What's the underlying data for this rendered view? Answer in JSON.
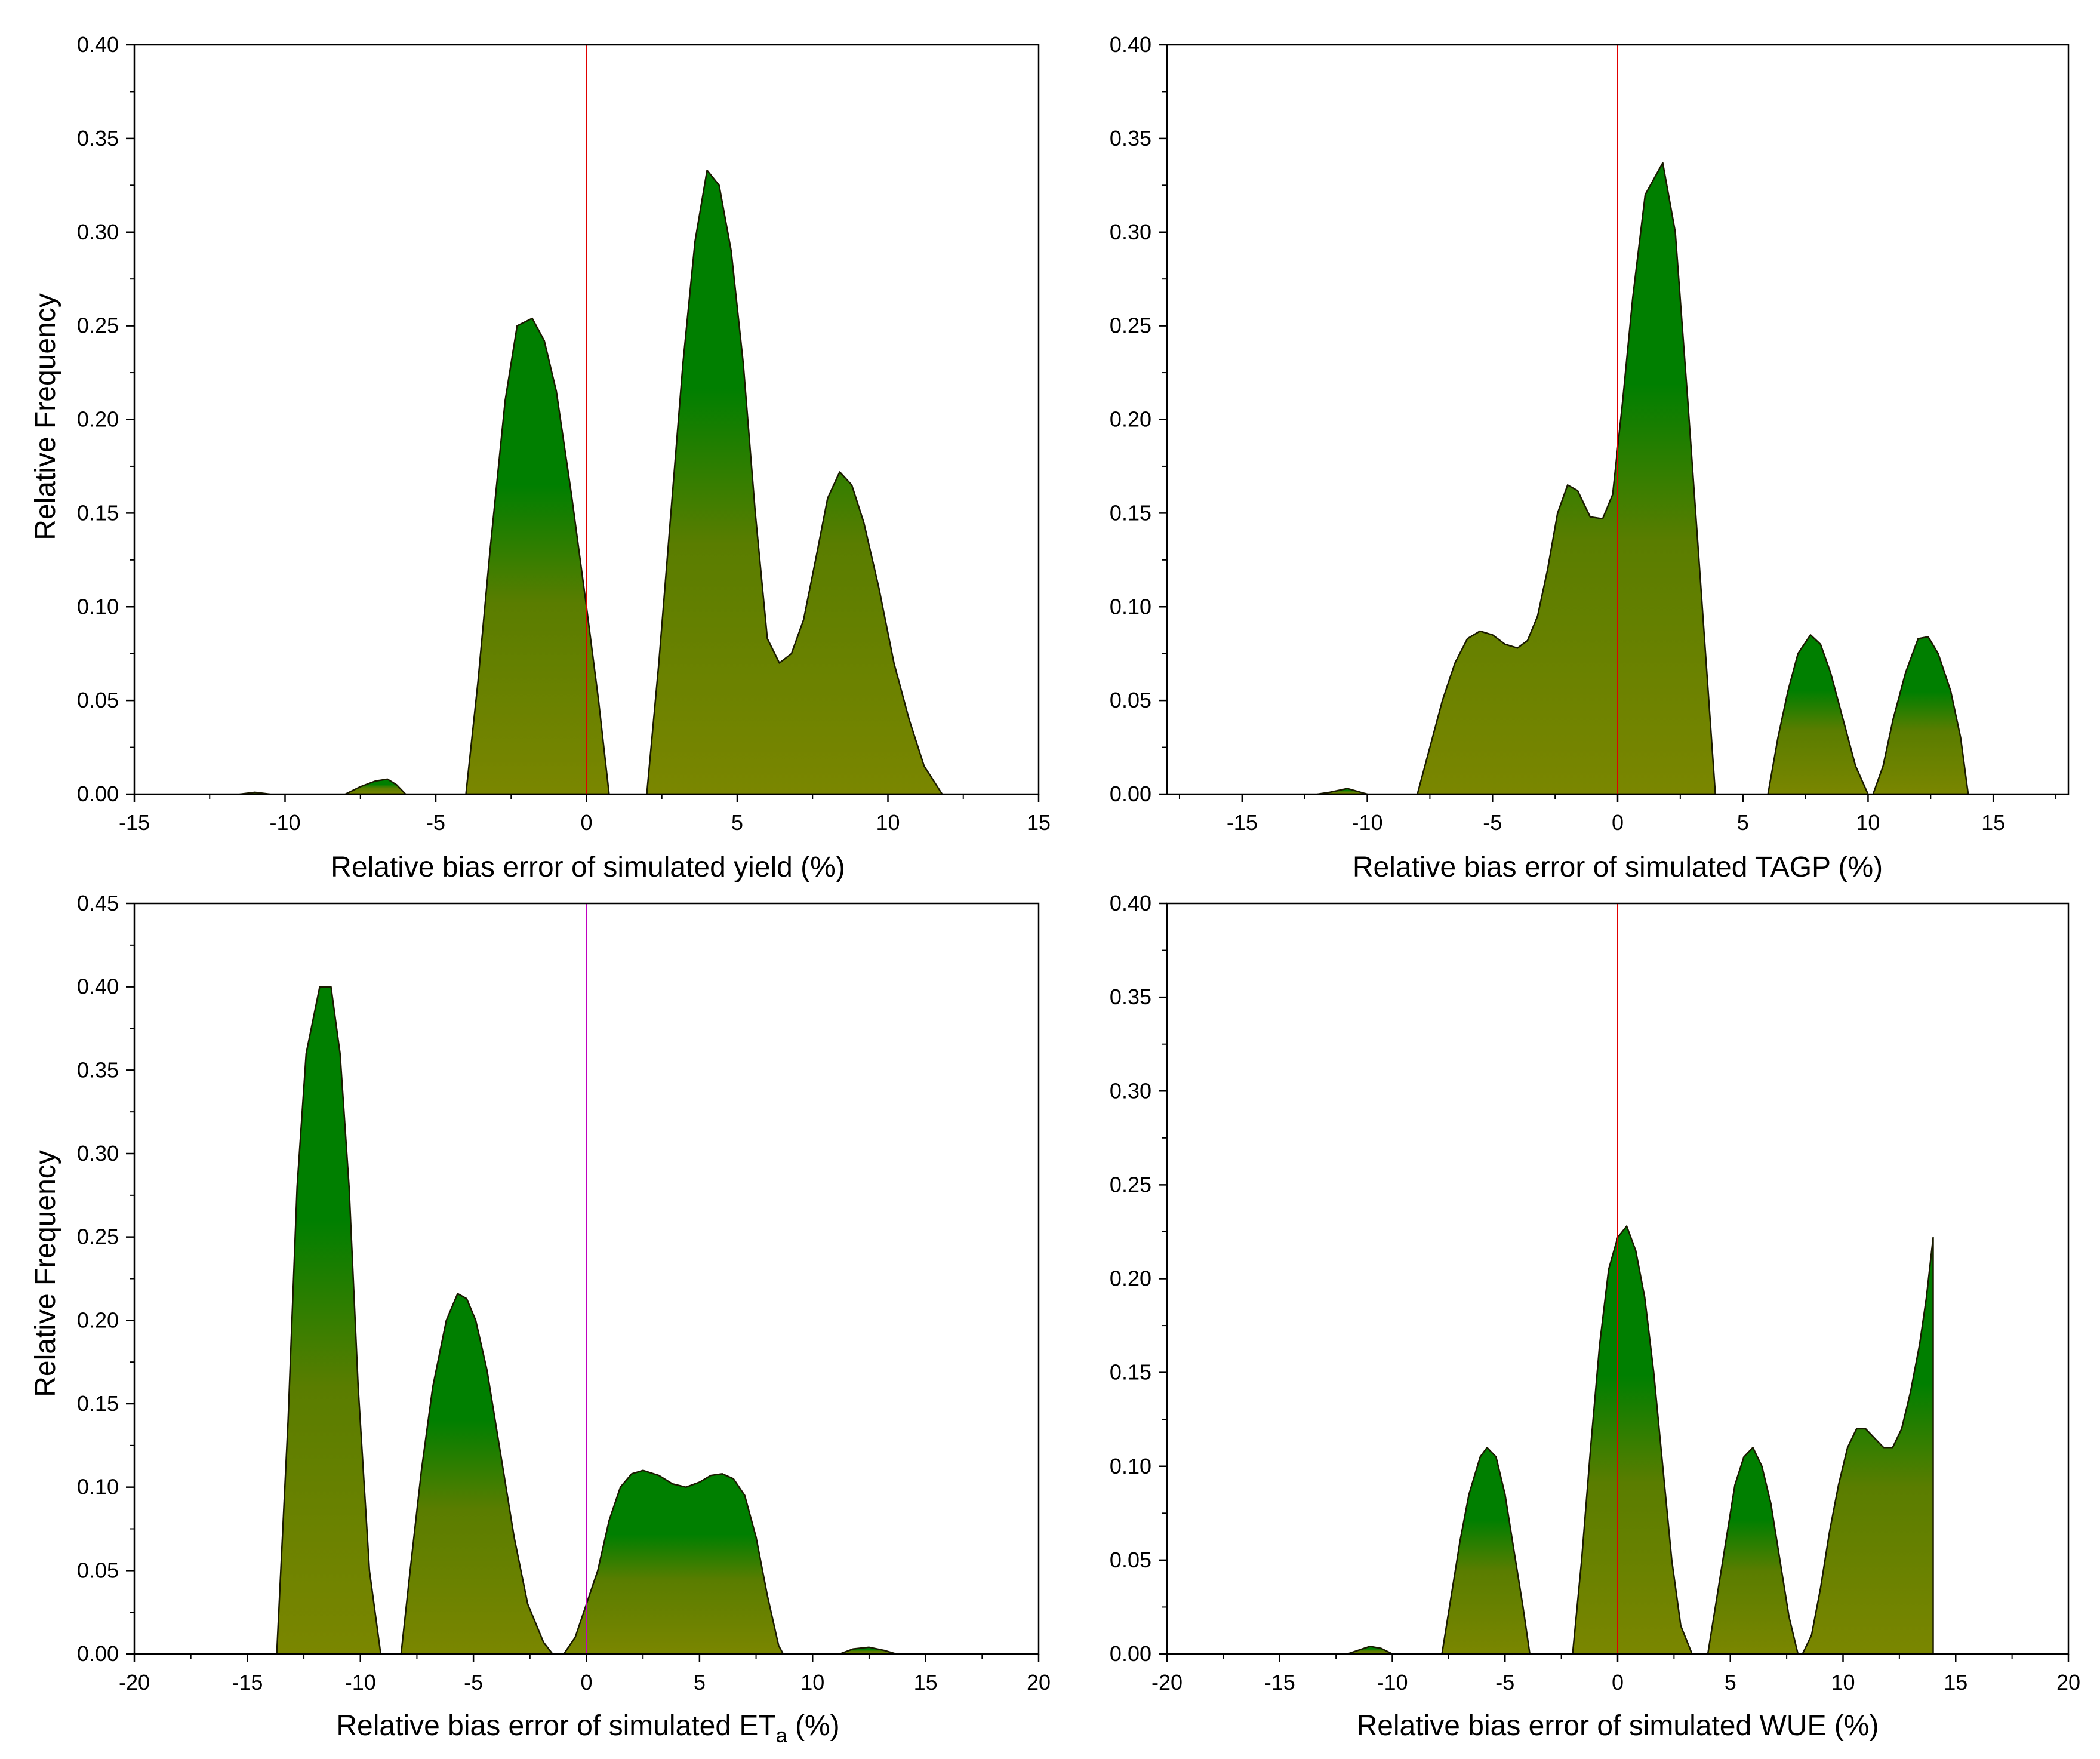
{
  "colors": {
    "fill_top": "#007f00",
    "fill_bottom": "#7a8600",
    "outline": "#1a1a00",
    "zero_line_red": "#e00000",
    "zero_line_magenta": "#c000c0"
  },
  "chart_data": [
    {
      "id": "yield",
      "type": "area",
      "xlabel": "Relative bias error of simulated yield (%)",
      "ylabel": "Relative Frequency",
      "xlim": [
        -15,
        15
      ],
      "ylim": [
        0,
        0.4
      ],
      "xticks": [
        "-15",
        "-10",
        "-5",
        "0",
        "5",
        "10",
        "15"
      ],
      "yticks": [
        "0.00",
        "0.05",
        "0.10",
        "0.15",
        "0.20",
        "0.25",
        "0.30",
        "0.35",
        "0.40"
      ],
      "zero_line": "red",
      "segments": [
        [
          [
            -11.5,
            0
          ],
          [
            -11,
            0.001
          ],
          [
            -10.5,
            0
          ]
        ],
        [
          [
            -8,
            0
          ],
          [
            -7.5,
            0.004
          ],
          [
            -7,
            0.007
          ],
          [
            -6.6,
            0.008
          ],
          [
            -6.3,
            0.005
          ],
          [
            -6,
            0
          ]
        ],
        [
          [
            -4,
            0
          ],
          [
            -3.6,
            0.06
          ],
          [
            -3.2,
            0.13
          ],
          [
            -2.7,
            0.21
          ],
          [
            -2.3,
            0.25
          ],
          [
            -1.8,
            0.254
          ],
          [
            -1.4,
            0.242
          ],
          [
            -1,
            0.215
          ],
          [
            -0.5,
            0.16
          ],
          [
            0,
            0.1
          ],
          [
            0.4,
            0.05
          ],
          [
            0.75,
            0
          ]
        ],
        [
          [
            2,
            0
          ],
          [
            2.4,
            0.07
          ],
          [
            2.8,
            0.15
          ],
          [
            3.2,
            0.23
          ],
          [
            3.6,
            0.295
          ],
          [
            4,
            0.333
          ],
          [
            4.4,
            0.325
          ],
          [
            4.8,
            0.29
          ],
          [
            5.2,
            0.23
          ],
          [
            5.6,
            0.15
          ],
          [
            6,
            0.083
          ],
          [
            6.4,
            0.07
          ],
          [
            6.8,
            0.075
          ],
          [
            7.2,
            0.093
          ],
          [
            7.6,
            0.125
          ],
          [
            8,
            0.158
          ],
          [
            8.4,
            0.172
          ],
          [
            8.8,
            0.165
          ],
          [
            9.2,
            0.145
          ],
          [
            9.7,
            0.11
          ],
          [
            10.2,
            0.07
          ],
          [
            10.7,
            0.04
          ],
          [
            11.2,
            0.015
          ],
          [
            11.8,
            0
          ]
        ]
      ]
    },
    {
      "id": "tagp",
      "type": "area",
      "xlabel": "Relative bias error of simulated TAGP (%)",
      "ylabel": "",
      "xlim": [
        -18,
        18
      ],
      "ylim": [
        0,
        0.4
      ],
      "xticks": [
        "-15",
        "-10",
        "-5",
        "0",
        "5",
        "10",
        "15"
      ],
      "yticks": [
        "0.00",
        "0.05",
        "0.10",
        "0.15",
        "0.20",
        "0.25",
        "0.30",
        "0.35",
        "0.40"
      ],
      "zero_line": "red",
      "segments": [
        [
          [
            -12,
            0
          ],
          [
            -11.5,
            0.001
          ],
          [
            -10.8,
            0.003
          ],
          [
            -10,
            0
          ]
        ],
        [
          [
            -8,
            0
          ],
          [
            -7.5,
            0.025
          ],
          [
            -7,
            0.05
          ],
          [
            -6.5,
            0.07
          ],
          [
            -6,
            0.083
          ],
          [
            -5.5,
            0.087
          ],
          [
            -5,
            0.085
          ],
          [
            -4.5,
            0.08
          ],
          [
            -4,
            0.078
          ],
          [
            -3.6,
            0.082
          ],
          [
            -3.2,
            0.095
          ],
          [
            -2.8,
            0.12
          ],
          [
            -2.4,
            0.15
          ],
          [
            -2,
            0.165
          ],
          [
            -1.6,
            0.162
          ],
          [
            -1.1,
            0.148
          ],
          [
            -0.6,
            0.147
          ],
          [
            -0.2,
            0.16
          ],
          [
            0.2,
            0.21
          ],
          [
            0.6,
            0.265
          ],
          [
            1.1,
            0.32
          ],
          [
            1.8,
            0.337
          ],
          [
            2.3,
            0.3
          ],
          [
            2.8,
            0.21
          ],
          [
            3.3,
            0.115
          ],
          [
            3.9,
            0
          ]
        ],
        [
          [
            6,
            0
          ],
          [
            6.4,
            0.03
          ],
          [
            6.8,
            0.055
          ],
          [
            7.2,
            0.075
          ],
          [
            7.7,
            0.085
          ],
          [
            8.1,
            0.08
          ],
          [
            8.5,
            0.065
          ],
          [
            9,
            0.04
          ],
          [
            9.5,
            0.015
          ],
          [
            10,
            0
          ]
        ],
        [
          [
            10.2,
            0
          ],
          [
            10.6,
            0.015
          ],
          [
            11,
            0.04
          ],
          [
            11.5,
            0.065
          ],
          [
            12,
            0.083
          ],
          [
            12.4,
            0.084
          ],
          [
            12.8,
            0.075
          ],
          [
            13.3,
            0.055
          ],
          [
            13.7,
            0.03
          ],
          [
            14,
            0
          ]
        ]
      ]
    },
    {
      "id": "eta",
      "type": "area",
      "xlabel": "Relative bias error of simulated ET",
      "xlabel_sub": "a",
      "xlabel_tail": " (%)",
      "ylabel": "Relative Frequency",
      "xlim": [
        -20,
        20
      ],
      "ylim": [
        0,
        0.45
      ],
      "xticks": [
        "-20",
        "-15",
        "-10",
        "-5",
        "0",
        "5",
        "10",
        "15",
        "20"
      ],
      "yticks": [
        "0.00",
        "0.05",
        "0.10",
        "0.15",
        "0.20",
        "0.25",
        "0.30",
        "0.35",
        "0.40",
        "0.45"
      ],
      "zero_line": "magenta",
      "segments": [
        [
          [
            -13.7,
            0
          ],
          [
            -13.2,
            0.14
          ],
          [
            -12.8,
            0.28
          ],
          [
            -12.4,
            0.36
          ],
          [
            -11.8,
            0.4
          ],
          [
            -11.3,
            0.4
          ],
          [
            -10.9,
            0.36
          ],
          [
            -10.5,
            0.28
          ],
          [
            -10.1,
            0.16
          ],
          [
            -9.6,
            0.05
          ],
          [
            -9.1,
            0
          ]
        ],
        [
          [
            -8.2,
            0
          ],
          [
            -7.8,
            0.05
          ],
          [
            -7.3,
            0.11
          ],
          [
            -6.8,
            0.16
          ],
          [
            -6.2,
            0.2
          ],
          [
            -5.7,
            0.216
          ],
          [
            -5.3,
            0.213
          ],
          [
            -4.9,
            0.2
          ],
          [
            -4.4,
            0.17
          ],
          [
            -3.8,
            0.12
          ],
          [
            -3.2,
            0.07
          ],
          [
            -2.6,
            0.03
          ],
          [
            -1.9,
            0.007
          ],
          [
            -1.5,
            0
          ]
        ],
        [
          [
            -1,
            0
          ],
          [
            -0.5,
            0.01
          ],
          [
            0,
            0.03
          ],
          [
            0.5,
            0.05
          ],
          [
            1,
            0.08
          ],
          [
            1.5,
            0.1
          ],
          [
            2,
            0.108
          ],
          [
            2.5,
            0.11
          ],
          [
            3.2,
            0.107
          ],
          [
            3.8,
            0.102
          ],
          [
            4.4,
            0.1
          ],
          [
            5,
            0.103
          ],
          [
            5.5,
            0.107
          ],
          [
            6,
            0.108
          ],
          [
            6.5,
            0.105
          ],
          [
            7,
            0.095
          ],
          [
            7.5,
            0.07
          ],
          [
            8,
            0.035
          ],
          [
            8.5,
            0.005
          ],
          [
            8.7,
            0
          ]
        ],
        [
          [
            11.2,
            0
          ],
          [
            11.8,
            0.003
          ],
          [
            12.5,
            0.004
          ],
          [
            13.2,
            0.002
          ],
          [
            13.7,
            0
          ]
        ]
      ]
    },
    {
      "id": "wue",
      "type": "area",
      "xlabel": "Relative bias error of simulated WUE (%)",
      "ylabel": "",
      "xlim": [
        -20,
        20
      ],
      "ylim": [
        0,
        0.4
      ],
      "xticks": [
        "-20",
        "-15",
        "-10",
        "-5",
        "0",
        "5",
        "10",
        "15",
        "20"
      ],
      "yticks": [
        "0.00",
        "0.05",
        "0.10",
        "0.15",
        "0.20",
        "0.25",
        "0.30",
        "0.35",
        "0.40"
      ],
      "zero_line": "red",
      "segments": [
        [
          [
            -12,
            0
          ],
          [
            -11.5,
            0.002
          ],
          [
            -11,
            0.004
          ],
          [
            -10.5,
            0.003
          ],
          [
            -10,
            0
          ]
        ],
        [
          [
            -7.8,
            0
          ],
          [
            -7.4,
            0.03
          ],
          [
            -7,
            0.06
          ],
          [
            -6.6,
            0.085
          ],
          [
            -6.1,
            0.105
          ],
          [
            -5.8,
            0.11
          ],
          [
            -5.4,
            0.105
          ],
          [
            -5,
            0.085
          ],
          [
            -4.6,
            0.055
          ],
          [
            -4.2,
            0.025
          ],
          [
            -3.9,
            0
          ]
        ],
        [
          [
            -2,
            0
          ],
          [
            -1.6,
            0.05
          ],
          [
            -1.2,
            0.11
          ],
          [
            -0.8,
            0.165
          ],
          [
            -0.4,
            0.205
          ],
          [
            0,
            0.222
          ],
          [
            0.4,
            0.228
          ],
          [
            0.8,
            0.215
          ],
          [
            1.2,
            0.19
          ],
          [
            1.6,
            0.15
          ],
          [
            2,
            0.1
          ],
          [
            2.4,
            0.05
          ],
          [
            2.8,
            0.015
          ],
          [
            3.3,
            0
          ]
        ],
        [
          [
            4,
            0
          ],
          [
            4.4,
            0.03
          ],
          [
            4.8,
            0.06
          ],
          [
            5.2,
            0.09
          ],
          [
            5.6,
            0.105
          ],
          [
            6,
            0.11
          ],
          [
            6.4,
            0.1
          ],
          [
            6.8,
            0.08
          ],
          [
            7.2,
            0.05
          ],
          [
            7.6,
            0.02
          ],
          [
            8,
            0
          ]
        ],
        [
          [
            8.2,
            0
          ],
          [
            8.6,
            0.01
          ],
          [
            9,
            0.035
          ],
          [
            9.4,
            0.065
          ],
          [
            9.8,
            0.09
          ],
          [
            10.2,
            0.11
          ],
          [
            10.6,
            0.12
          ],
          [
            11,
            0.12
          ],
          [
            11.4,
            0.115
          ],
          [
            11.8,
            0.11
          ],
          [
            12.2,
            0.11
          ],
          [
            12.6,
            0.12
          ],
          [
            13,
            0.14
          ],
          [
            13.4,
            0.165
          ],
          [
            13.7,
            0.19
          ],
          [
            14,
            0.222
          ],
          [
            14,
            0
          ]
        ]
      ]
    }
  ]
}
